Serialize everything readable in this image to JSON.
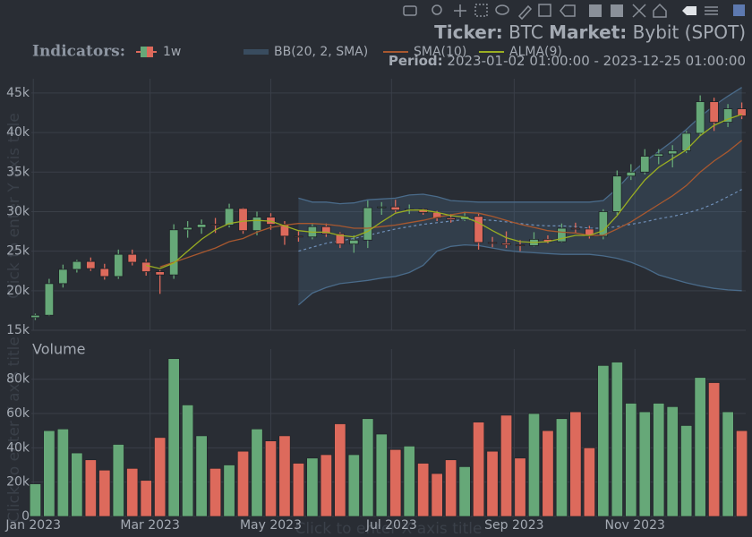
{
  "header": {
    "ticker_label": "Ticker:",
    "ticker": "BTC",
    "market_label": "Market:",
    "market": "Bybit (SPOT)",
    "period_label": "Period:",
    "period": "2023-01-02 01:00:00 - 2023-12-25 01:00:00",
    "indicators_label": "Indicators:"
  },
  "chart_data": [
    {
      "type": "candlestick",
      "name": "1w",
      "y_title": "Click to enter Y axis title",
      "increasing_color": "#66a878",
      "decreasing_color": "#dd6a5c",
      "x": [
        "2023-01-02",
        "2023-01-09",
        "2023-01-16",
        "2023-01-23",
        "2023-01-30",
        "2023-02-06",
        "2023-02-13",
        "2023-02-20",
        "2023-02-27",
        "2023-03-06",
        "2023-03-13",
        "2023-03-20",
        "2023-03-27",
        "2023-04-03",
        "2023-04-10",
        "2023-04-17",
        "2023-04-24",
        "2023-05-01",
        "2023-05-08",
        "2023-05-15",
        "2023-05-22",
        "2023-05-29",
        "2023-06-05",
        "2023-06-12",
        "2023-06-19",
        "2023-06-26",
        "2023-07-03",
        "2023-07-10",
        "2023-07-17",
        "2023-07-24",
        "2023-07-31",
        "2023-08-07",
        "2023-08-14",
        "2023-08-21",
        "2023-08-28",
        "2023-09-04",
        "2023-09-11",
        "2023-09-18",
        "2023-09-25",
        "2023-10-02",
        "2023-10-09",
        "2023-10-16",
        "2023-10-23",
        "2023-10-30",
        "2023-11-06",
        "2023-11-13",
        "2023-11-20",
        "2023-11-27",
        "2023-12-04",
        "2023-12-11",
        "2023-12-18",
        "2023-12-25"
      ],
      "open": [
        16600,
        16900,
        20900,
        22700,
        23700,
        22800,
        21800,
        24600,
        23600,
        22400,
        22000,
        27700,
        28000,
        28400,
        28300,
        30400,
        27600,
        29300,
        28400,
        26900,
        26800,
        28100,
        27200,
        25900,
        26400,
        30500,
        30600,
        30200,
        30300,
        29900,
        29200,
        29000,
        29400,
        26100,
        26000,
        25800,
        25700,
        26500,
        26200,
        27900,
        27800,
        26900,
        30000,
        34500,
        35000,
        37000,
        37300,
        37700,
        39900,
        43900,
        41300,
        43000
      ],
      "high": [
        17100,
        21500,
        23300,
        23900,
        24200,
        23400,
        25200,
        25200,
        24000,
        22600,
        28400,
        28800,
        29000,
        29200,
        31000,
        30500,
        30000,
        29800,
        28800,
        27500,
        28400,
        28500,
        27400,
        27000,
        31400,
        31200,
        31500,
        30900,
        30400,
        30100,
        29700,
        30000,
        29700,
        26800,
        27500,
        26400,
        27400,
        27000,
        28500,
        28600,
        28200,
        30300,
        35200,
        36000,
        37900,
        37900,
        38400,
        40200,
        44700,
        44400,
        43600,
        43800
      ],
      "low": [
        16300,
        16800,
        20400,
        22300,
        22500,
        21400,
        21500,
        23200,
        21900,
        19600,
        21500,
        26700,
        27200,
        27300,
        28000,
        27200,
        27000,
        27700,
        25800,
        26200,
        26500,
        26800,
        25400,
        24800,
        25400,
        29600,
        29900,
        29700,
        29600,
        28800,
        28600,
        28800,
        25200,
        25500,
        25400,
        25000,
        25600,
        26000,
        26100,
        27300,
        26600,
        26500,
        29600,
        34000,
        34700,
        36000,
        35600,
        37400,
        39600,
        40200,
        40700,
        41700
      ],
      "close": [
        16900,
        20900,
        22700,
        23700,
        22800,
        21800,
        24600,
        23600,
        22400,
        22000,
        27700,
        28000,
        28400,
        28300,
        30400,
        27600,
        29300,
        28400,
        26900,
        26800,
        28100,
        27200,
        25900,
        26400,
        30500,
        30600,
        30200,
        30300,
        29900,
        29200,
        29000,
        29400,
        26100,
        26000,
        25800,
        25700,
        26500,
        26200,
        27900,
        27800,
        26900,
        30000,
        34500,
        35000,
        37000,
        37300,
        37700,
        39900,
        43900,
        41300,
        43000,
        42100
      ],
      "series": [
        {
          "name": "BB(20, 2, SMA)",
          "color": "#6f8fb8",
          "band_color": "#4a6b8a",
          "values": [
            null,
            null,
            null,
            null,
            null,
            null,
            null,
            null,
            null,
            null,
            null,
            null,
            null,
            null,
            null,
            null,
            null,
            null,
            null,
            25000,
            25500,
            26000,
            26300,
            26600,
            27000,
            27400,
            27800,
            28100,
            28400,
            28600,
            28800,
            29000,
            29000,
            28900,
            28700,
            28500,
            28300,
            28200,
            28200,
            28100,
            27900,
            27900,
            28100,
            28400,
            28700,
            29100,
            29400,
            29800,
            30300,
            31000,
            31900,
            32800
          ],
          "upper": [
            null,
            null,
            null,
            null,
            null,
            null,
            null,
            null,
            null,
            null,
            null,
            null,
            null,
            null,
            null,
            null,
            null,
            null,
            null,
            31700,
            31200,
            31200,
            31000,
            31100,
            31500,
            31600,
            31700,
            32100,
            32200,
            31900,
            31400,
            31300,
            31200,
            31200,
            31200,
            31200,
            31200,
            31200,
            31200,
            31200,
            31200,
            31400,
            32900,
            34800,
            36300,
            37600,
            38900,
            40400,
            42000,
            43400,
            44600,
            45700
          ],
          "lower": [
            null,
            null,
            null,
            null,
            null,
            null,
            null,
            null,
            null,
            null,
            null,
            null,
            null,
            null,
            null,
            null,
            null,
            null,
            null,
            18200,
            19700,
            20400,
            20900,
            21100,
            21300,
            21600,
            21800,
            22300,
            23200,
            25000,
            25600,
            25800,
            25700,
            25400,
            25100,
            24900,
            24800,
            24700,
            24600,
            24600,
            24600,
            24400,
            24100,
            23600,
            22900,
            22000,
            21500,
            21000,
            20600,
            20300,
            20100,
            20000
          ]
        },
        {
          "name": "SMA(10)",
          "color": "#a8582f",
          "values": [
            null,
            null,
            null,
            null,
            null,
            null,
            null,
            null,
            null,
            23000,
            23600,
            24200,
            24800,
            25400,
            26200,
            26600,
            27400,
            28000,
            28300,
            28500,
            28500,
            28400,
            28200,
            27900,
            27900,
            28100,
            28300,
            28600,
            28900,
            29300,
            29600,
            29900,
            29800,
            29400,
            28900,
            28400,
            28000,
            27600,
            27400,
            27300,
            27000,
            27000,
            27800,
            28700,
            29800,
            30900,
            32000,
            33300,
            35000,
            36400,
            37600,
            39000
          ]
        },
        {
          "name": "ALMA(9)",
          "color": "#9aae22",
          "values": [
            null,
            null,
            null,
            null,
            null,
            null,
            null,
            null,
            23200,
            22800,
            23500,
            25000,
            26500,
            27700,
            28500,
            28800,
            28900,
            28800,
            28200,
            27600,
            27400,
            27400,
            27000,
            26800,
            27500,
            28700,
            29800,
            30200,
            30200,
            29900,
            29500,
            29300,
            28600,
            27600,
            26700,
            26200,
            26100,
            26200,
            26600,
            27000,
            27000,
            27600,
            29500,
            31800,
            34000,
            35600,
            36700,
            37800,
            39600,
            40900,
            41700,
            42300
          ]
        }
      ],
      "xlim": [
        "2022-12-31",
        "2023-12-27"
      ],
      "xticks": [
        "2023-01-01",
        "2023-03-01",
        "2023-05-01",
        "2023-07-01",
        "2023-09-01",
        "2023-11-01"
      ],
      "ylim": [
        15000,
        46800
      ],
      "yticks": [
        {
          "value": 15000,
          "label": "15k"
        },
        {
          "value": 20000,
          "label": "20k"
        },
        {
          "value": 25000,
          "label": "25k"
        },
        {
          "value": 30000,
          "label": "30k"
        },
        {
          "value": 35000,
          "label": "35k"
        },
        {
          "value": 40000,
          "label": "40k"
        },
        {
          "value": 45000,
          "label": "45k"
        }
      ],
      "grid": true
    },
    {
      "type": "bar",
      "title": "Volume",
      "y_title": "Click to enter Y axis title",
      "x_title": "Click to enter X axis title",
      "color_by": "candle direction",
      "x": [
        "2023-01-02",
        "2023-01-09",
        "2023-01-16",
        "2023-01-23",
        "2023-01-30",
        "2023-02-06",
        "2023-02-13",
        "2023-02-20",
        "2023-02-27",
        "2023-03-06",
        "2023-03-13",
        "2023-03-20",
        "2023-03-27",
        "2023-04-03",
        "2023-04-10",
        "2023-04-17",
        "2023-04-24",
        "2023-05-01",
        "2023-05-08",
        "2023-05-15",
        "2023-05-22",
        "2023-05-29",
        "2023-06-05",
        "2023-06-12",
        "2023-06-19",
        "2023-06-26",
        "2023-07-03",
        "2023-07-10",
        "2023-07-17",
        "2023-07-24",
        "2023-07-31",
        "2023-08-07",
        "2023-08-14",
        "2023-08-21",
        "2023-08-28",
        "2023-09-04",
        "2023-09-11",
        "2023-09-18",
        "2023-09-25",
        "2023-10-02",
        "2023-10-09",
        "2023-10-16",
        "2023-10-23",
        "2023-10-30",
        "2023-11-06",
        "2023-11-13",
        "2023-11-20",
        "2023-11-27",
        "2023-12-04",
        "2023-12-11",
        "2023-12-18",
        "2023-12-25"
      ],
      "values": [
        19000,
        50000,
        51000,
        37000,
        33000,
        27000,
        42000,
        28000,
        21000,
        46000,
        92000,
        65000,
        47000,
        28000,
        30000,
        38000,
        51000,
        44000,
        47000,
        31000,
        34000,
        36000,
        54000,
        36000,
        57000,
        48000,
        39000,
        41000,
        31000,
        25000,
        33000,
        29000,
        55000,
        38000,
        59000,
        34000,
        60000,
        50000,
        57000,
        61000,
        40000,
        88000,
        90000,
        66000,
        61000,
        66000,
        64000,
        53000,
        81000,
        78000,
        61000,
        50000
      ],
      "xlim": [
        "2022-12-31",
        "2023-12-27"
      ],
      "xticks": [
        {
          "value": "2023-01-01",
          "label": "Jan 2023"
        },
        {
          "value": "2023-03-01",
          "label": "Mar 2023"
        },
        {
          "value": "2023-05-01",
          "label": "May 2023"
        },
        {
          "value": "2023-07-01",
          "label": "Jul 2023"
        },
        {
          "value": "2023-09-01",
          "label": "Sep 2023"
        },
        {
          "value": "2023-11-01",
          "label": "Nov 2023"
        }
      ],
      "ylim": [
        0,
        97600
      ],
      "yticks": [
        0,
        {
          "value": 20000,
          "label": "20k"
        },
        {
          "value": 40000,
          "label": "40k"
        },
        {
          "value": 60000,
          "label": "60k"
        },
        {
          "value": 80000,
          "label": "80k"
        }
      ],
      "grid": true
    }
  ]
}
